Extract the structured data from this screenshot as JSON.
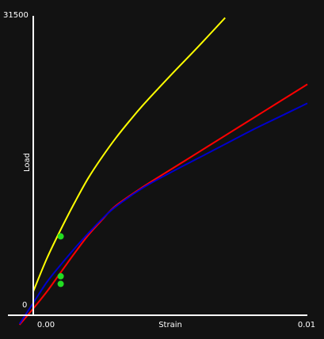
{
  "chart_data": {
    "type": "line",
    "title": "",
    "xlabel": "Strain",
    "ylabel": "Load",
    "xlim": [
      0,
      0.01
    ],
    "ylim": [
      0,
      31500
    ],
    "x_tick_labels": [
      "0.00",
      "0.01"
    ],
    "y_tick_labels": [
      "0",
      "31500"
    ],
    "grid": false,
    "legend": "none",
    "colors": {
      "background": "#121212",
      "axis": "#ffffff",
      "marker": "#22dd22"
    },
    "series": [
      {
        "color": "#ffff00",
        "x": [
          0.0,
          0.0005,
          0.001,
          0.0015,
          0.002,
          0.0025,
          0.003,
          0.0035,
          0.004,
          0.005,
          0.006,
          0.007
        ],
        "y": [
          2500,
          6000,
          9000,
          11800,
          14400,
          16600,
          18600,
          20400,
          22100,
          25200,
          28200,
          31300
        ]
      },
      {
        "color": "#ff0000",
        "x": [
          -0.0005,
          0.0,
          0.0005,
          0.001,
          0.0015,
          0.002,
          0.0025,
          0.003,
          0.004,
          0.005,
          0.006,
          0.007,
          0.008,
          0.009,
          0.01
        ],
        "y": [
          -1000,
          700,
          2500,
          4500,
          6500,
          8400,
          10000,
          11500,
          13500,
          15300,
          17100,
          18900,
          20700,
          22500,
          24300
        ]
      },
      {
        "color": "#0000cc",
        "x": [
          -0.0005,
          0.0,
          0.0005,
          0.001,
          0.0015,
          0.002,
          0.0025,
          0.003,
          0.004,
          0.005,
          0.006,
          0.007,
          0.008,
          0.009,
          0.01
        ],
        "y": [
          -900,
          1300,
          3500,
          5300,
          7000,
          8600,
          10100,
          11400,
          13400,
          15000,
          16500,
          18000,
          19500,
          20900,
          22300
        ]
      }
    ],
    "markers": [
      {
        "x": 0.001,
        "y": 8300
      },
      {
        "x": 0.001,
        "y": 4100
      },
      {
        "x": 0.001,
        "y": 3300
      }
    ]
  }
}
